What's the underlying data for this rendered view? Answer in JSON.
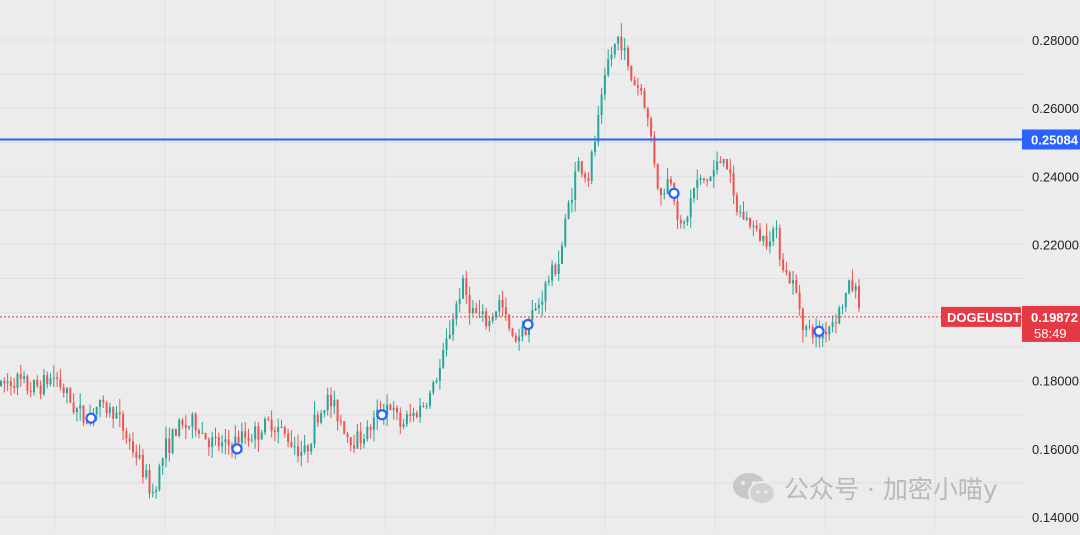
{
  "chart_data": {
    "type": "candlestick",
    "symbol": "DOGEUSDT",
    "last_price": "0.19872",
    "countdown": "58:49",
    "horizontal_line": {
      "price": 0.2508,
      "label": "0.25084"
    },
    "ylim": [
      0.137,
      0.2885
    ],
    "y_ticks": [
      {
        "value": 0.28,
        "label": "0.28000"
      },
      {
        "value": 0.26,
        "label": "0.26000"
      },
      {
        "value": 0.24,
        "label": "0.24000"
      },
      {
        "value": 0.22,
        "label": "0.22000"
      },
      {
        "value": 0.18,
        "label": "0.18000"
      },
      {
        "value": 0.16,
        "label": "0.16000"
      },
      {
        "value": 0.14,
        "label": "0.14000"
      }
    ],
    "grid": true,
    "colors": {
      "up": "#26a69a",
      "down": "#ef5350",
      "hline": "#2962ff",
      "price_tag": "#e53945",
      "marker": "#2962ff"
    },
    "price_path": [
      [
        0,
        0.1785
      ],
      [
        15,
        0.1805
      ],
      [
        30,
        0.1775
      ],
      [
        45,
        0.1795
      ],
      [
        55,
        0.1815
      ],
      [
        70,
        0.174
      ],
      [
        85,
        0.1685
      ],
      [
        95,
        0.1725
      ],
      [
        115,
        0.171
      ],
      [
        125,
        0.1645
      ],
      [
        140,
        0.156
      ],
      [
        152,
        0.1465
      ],
      [
        165,
        0.16
      ],
      [
        178,
        0.166
      ],
      [
        195,
        0.1675
      ],
      [
        210,
        0.162
      ],
      [
        225,
        0.1605
      ],
      [
        240,
        0.163
      ],
      [
        255,
        0.1645
      ],
      [
        272,
        0.168
      ],
      [
        290,
        0.1625
      ],
      [
        305,
        0.1585
      ],
      [
        315,
        0.168
      ],
      [
        328,
        0.1745
      ],
      [
        340,
        0.169
      ],
      [
        350,
        0.1625
      ],
      [
        365,
        0.164
      ],
      [
        378,
        0.17
      ],
      [
        388,
        0.1735
      ],
      [
        400,
        0.167
      ],
      [
        415,
        0.1705
      ],
      [
        428,
        0.1745
      ],
      [
        440,
        0.1835
      ],
      [
        452,
        0.1975
      ],
      [
        462,
        0.2085
      ],
      [
        472,
        0.2005
      ],
      [
        488,
        0.1965
      ],
      [
        500,
        0.2035
      ],
      [
        512,
        0.192
      ],
      [
        524,
        0.1955
      ],
      [
        538,
        0.202
      ],
      [
        548,
        0.2095
      ],
      [
        560,
        0.216
      ],
      [
        568,
        0.231
      ],
      [
        578,
        0.244
      ],
      [
        588,
        0.239
      ],
      [
        598,
        0.2555
      ],
      [
        608,
        0.2735
      ],
      [
        620,
        0.282
      ],
      [
        630,
        0.269
      ],
      [
        642,
        0.265
      ],
      [
        652,
        0.25
      ],
      [
        660,
        0.233
      ],
      [
        670,
        0.2405
      ],
      [
        682,
        0.223
      ],
      [
        695,
        0.2375
      ],
      [
        710,
        0.2395
      ],
      [
        725,
        0.247
      ],
      [
        735,
        0.2305
      ],
      [
        748,
        0.227
      ],
      [
        762,
        0.2215
      ],
      [
        775,
        0.2245
      ],
      [
        785,
        0.212
      ],
      [
        795,
        0.207
      ],
      [
        805,
        0.1955
      ],
      [
        818,
        0.193
      ],
      [
        830,
        0.1965
      ],
      [
        842,
        0.202
      ],
      [
        850,
        0.2085
      ],
      [
        857,
        0.206
      ],
      [
        862,
        0.1987
      ]
    ],
    "markers": [
      {
        "x": 91,
        "price": 0.169
      },
      {
        "x": 237,
        "price": 0.16
      },
      {
        "x": 382,
        "price": 0.17
      },
      {
        "x": 528,
        "price": 0.1965
      },
      {
        "x": 674,
        "price": 0.235
      },
      {
        "x": 819,
        "price": 0.1945
      }
    ]
  },
  "watermark": {
    "icon": "wechat-icon",
    "text": "公众号 · 加密小喵y"
  }
}
